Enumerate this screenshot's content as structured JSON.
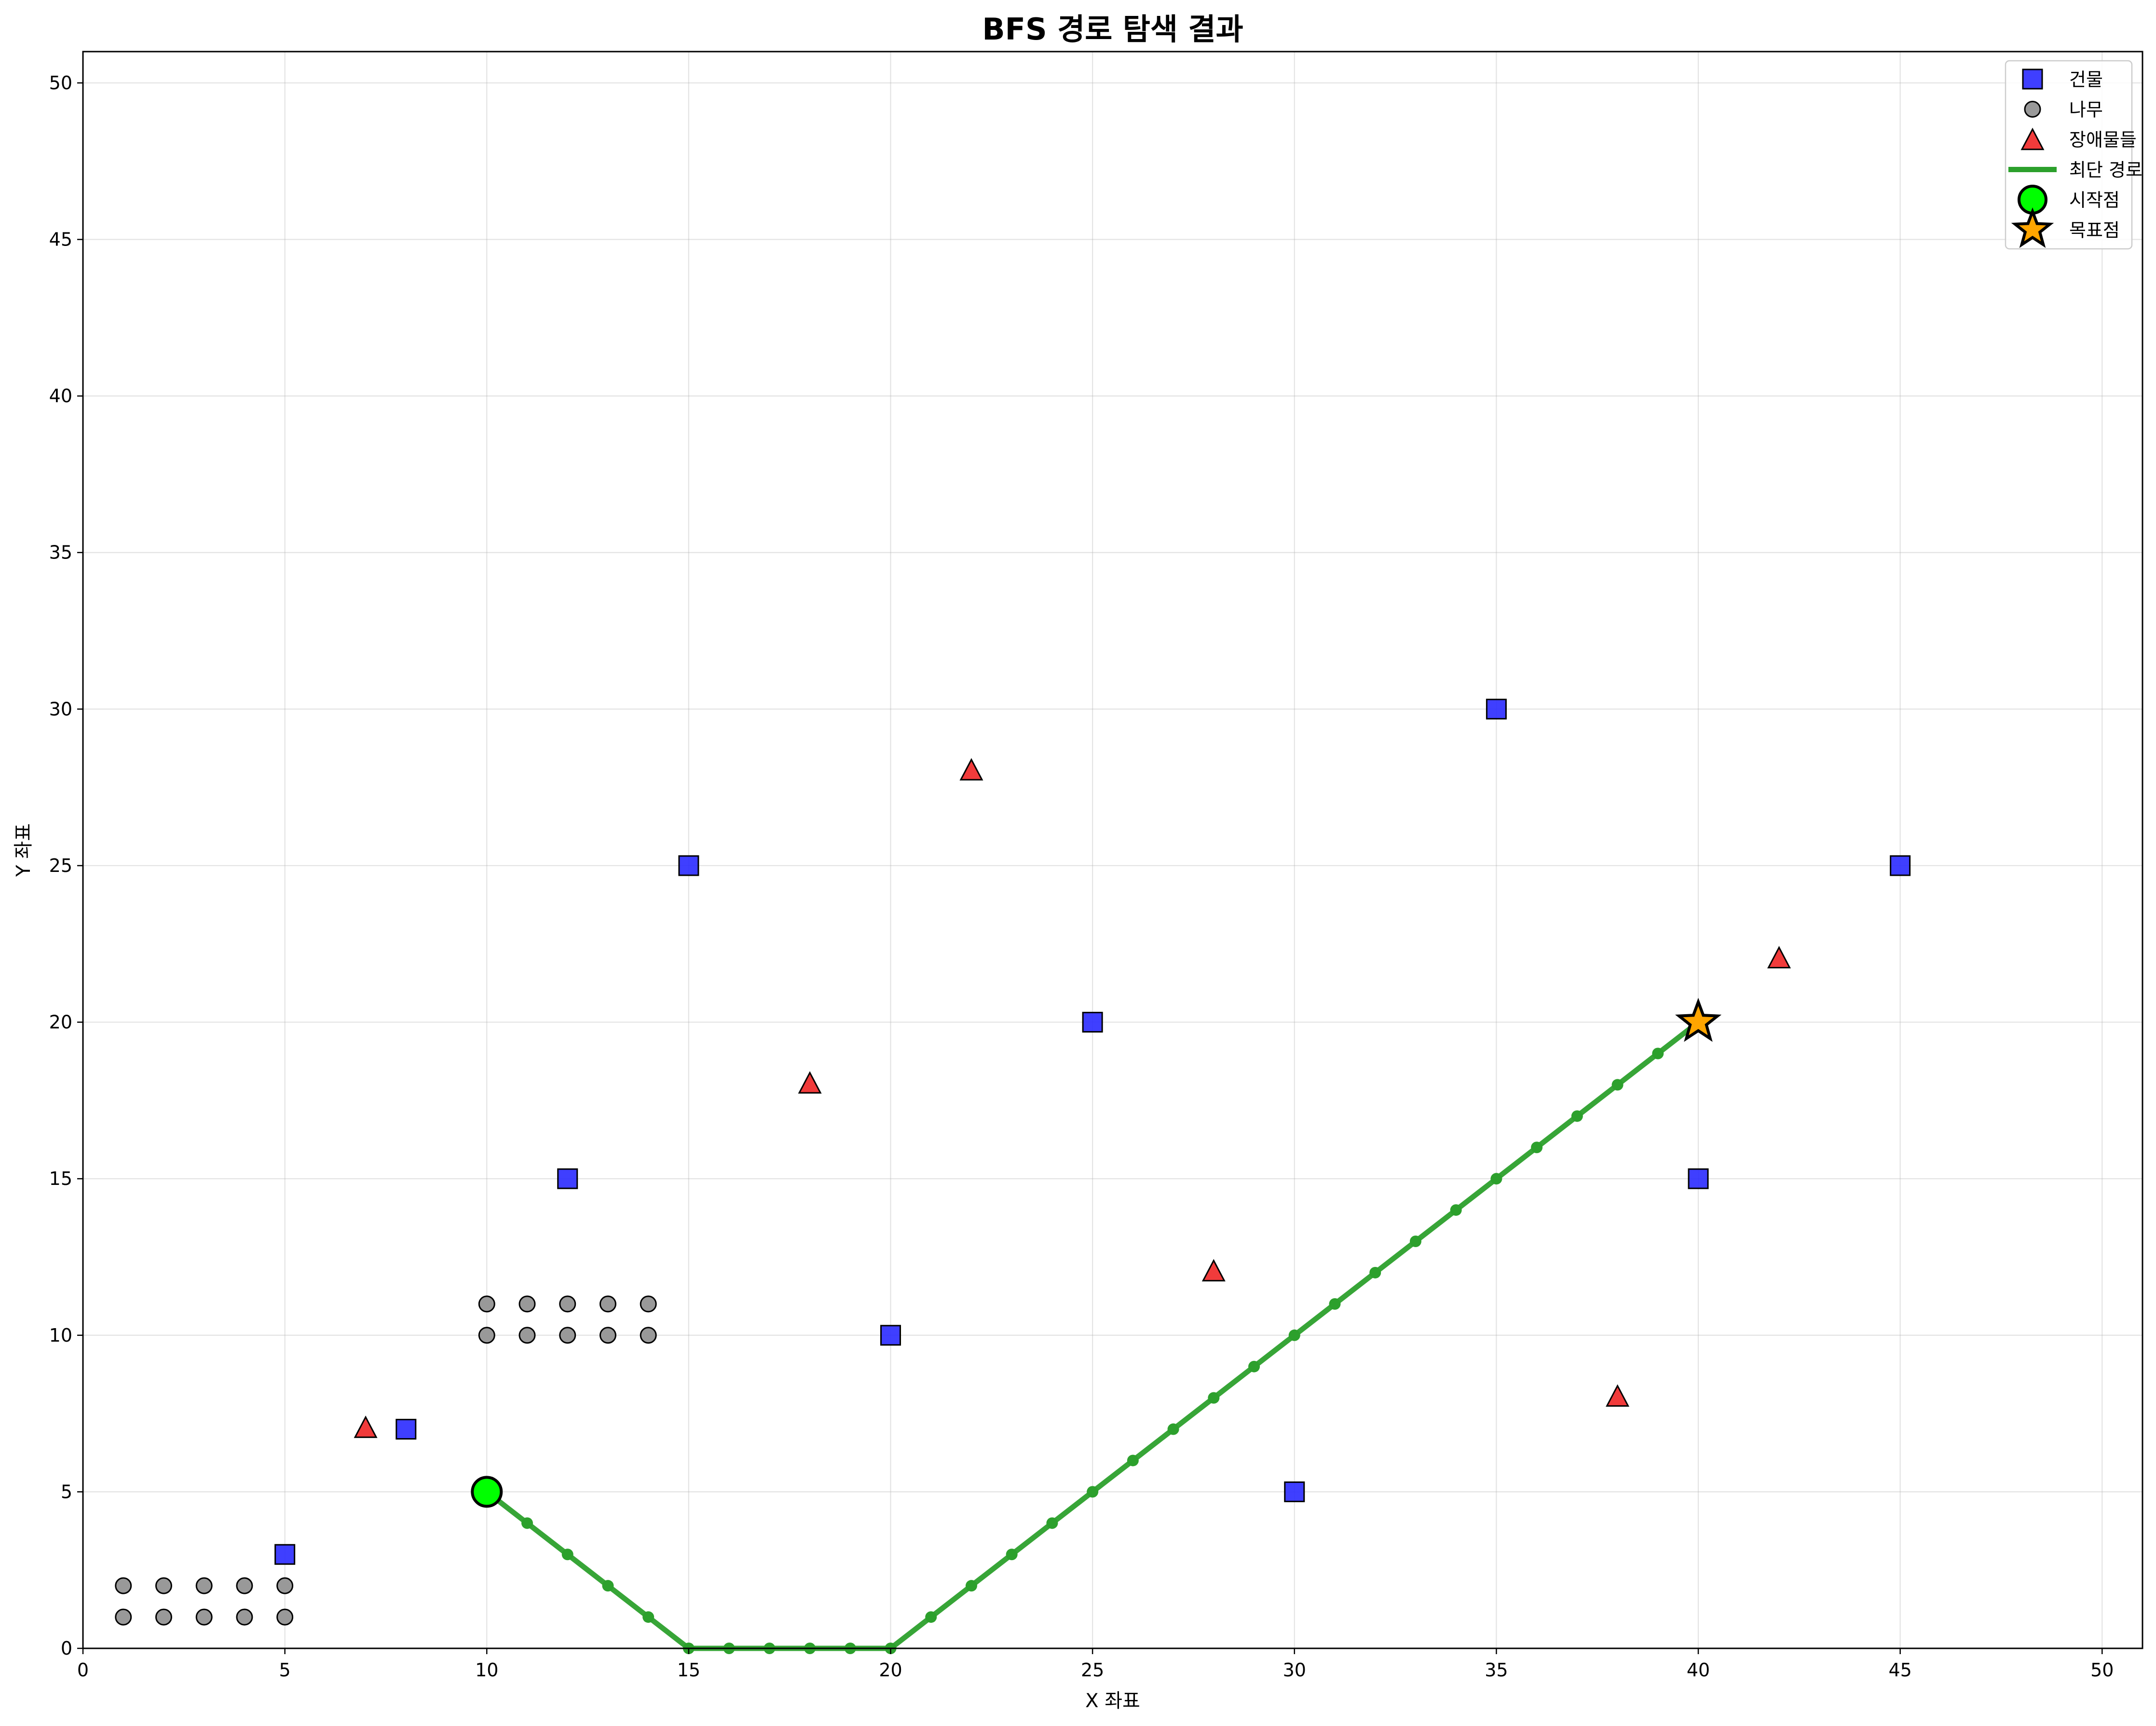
{
  "chart_data": {
    "type": "scatter",
    "title": "BFS 경로 탐색 결과",
    "xlabel": "X 좌표",
    "ylabel": "Y 좌표",
    "xlim": [
      0,
      51
    ],
    "ylim": [
      0,
      51
    ],
    "xticks": [
      0,
      5,
      10,
      15,
      20,
      25,
      30,
      35,
      40,
      45,
      50
    ],
    "yticks": [
      0,
      5,
      10,
      15,
      20,
      25,
      30,
      35,
      40,
      45,
      50
    ],
    "grid": true,
    "legend_position": "top-right",
    "colors": {
      "building": "#2a2aff",
      "tree": "#999999",
      "obstacle": "#f03030",
      "path": "#2ca02c",
      "start": "#00ff00",
      "goal": "#ffa500"
    },
    "series": [
      {
        "name": "건물",
        "marker": "square",
        "points": [
          [
            5,
            3
          ],
          [
            8,
            7
          ],
          [
            12,
            15
          ],
          [
            15,
            25
          ],
          [
            20,
            10
          ],
          [
            25,
            20
          ],
          [
            30,
            5
          ],
          [
            35,
            30
          ],
          [
            40,
            15
          ],
          [
            45,
            25
          ]
        ]
      },
      {
        "name": "나무",
        "marker": "circle",
        "points": [
          [
            1,
            1
          ],
          [
            2,
            1
          ],
          [
            3,
            1
          ],
          [
            4,
            1
          ],
          [
            5,
            1
          ],
          [
            1,
            2
          ],
          [
            2,
            2
          ],
          [
            3,
            2
          ],
          [
            4,
            2
          ],
          [
            5,
            2
          ],
          [
            10,
            10
          ],
          [
            11,
            10
          ],
          [
            12,
            10
          ],
          [
            13,
            10
          ],
          [
            14,
            10
          ],
          [
            10,
            11
          ],
          [
            11,
            11
          ],
          [
            12,
            11
          ],
          [
            13,
            11
          ],
          [
            14,
            11
          ]
        ]
      },
      {
        "name": "장애물들",
        "marker": "triangle",
        "points": [
          [
            7,
            7
          ],
          [
            18,
            18
          ],
          [
            22,
            28
          ],
          [
            28,
            12
          ],
          [
            38,
            8
          ],
          [
            42,
            22
          ]
        ]
      },
      {
        "name": "최단 경로",
        "marker": "line",
        "points": [
          [
            10,
            5
          ],
          [
            11,
            4
          ],
          [
            12,
            3
          ],
          [
            13,
            2
          ],
          [
            14,
            1
          ],
          [
            15,
            0
          ],
          [
            16,
            0
          ],
          [
            17,
            0
          ],
          [
            18,
            0
          ],
          [
            19,
            0
          ],
          [
            20,
            0
          ],
          [
            21,
            1
          ],
          [
            22,
            2
          ],
          [
            23,
            3
          ],
          [
            24,
            4
          ],
          [
            25,
            5
          ],
          [
            26,
            6
          ],
          [
            27,
            7
          ],
          [
            28,
            8
          ],
          [
            29,
            9
          ],
          [
            30,
            10
          ],
          [
            31,
            11
          ],
          [
            32,
            12
          ],
          [
            33,
            13
          ],
          [
            34,
            14
          ],
          [
            35,
            15
          ],
          [
            36,
            16
          ],
          [
            37,
            17
          ],
          [
            38,
            18
          ],
          [
            39,
            19
          ],
          [
            40,
            20
          ]
        ]
      },
      {
        "name": "시작점",
        "marker": "big-circle",
        "points": [
          [
            10,
            5
          ]
        ]
      },
      {
        "name": "목표점",
        "marker": "star",
        "points": [
          [
            40,
            20
          ]
        ]
      }
    ]
  }
}
